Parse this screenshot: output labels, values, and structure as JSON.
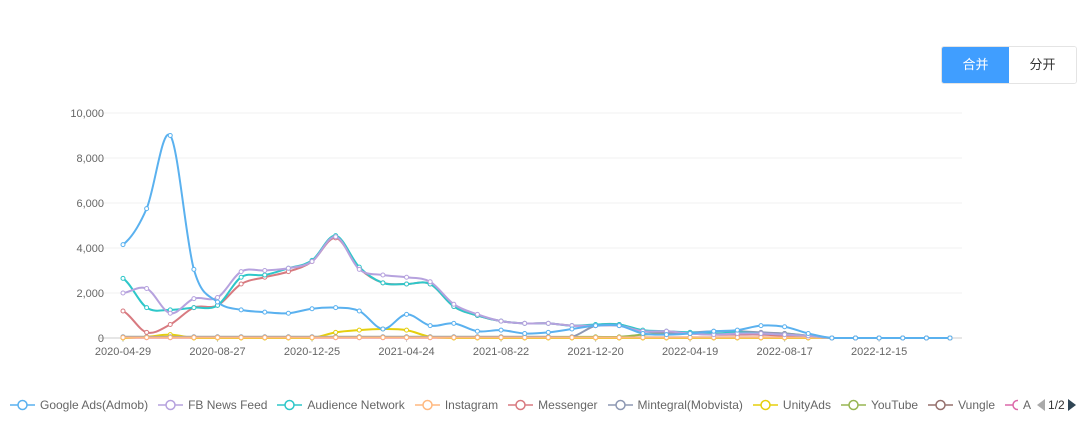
{
  "toggle": {
    "merge": "合并",
    "split": "分开"
  },
  "chart_data": {
    "type": "line",
    "ylim": [
      0,
      10000
    ],
    "yticks": [
      "0",
      "2,000",
      "4,000",
      "6,000",
      "8,000",
      "10,000"
    ],
    "ytick_values": [
      0,
      2000,
      4000,
      6000,
      8000,
      10000
    ],
    "xtick_labels": [
      "2020-04-29",
      "2020-08-27",
      "2020-12-25",
      "2021-04-24",
      "2021-08-22",
      "2021-12-20",
      "2022-04-19",
      "2022-08-17",
      "2022-12-15"
    ],
    "xtick_every": 4,
    "num_points": 36,
    "grid": true,
    "legend_position": "bottom",
    "legend_page": "1/2",
    "series": [
      {
        "name": "Google Ads(Admob)",
        "color": "#5ab1ef",
        "values": [
          4150,
          5750,
          9000,
          3050,
          1600,
          1250,
          1150,
          1100,
          1300,
          1350,
          1200,
          400,
          1050,
          550,
          650,
          300,
          350,
          200,
          250,
          400,
          550,
          550,
          200,
          150,
          200,
          300,
          350,
          550,
          500,
          200,
          0,
          0,
          0,
          0,
          0,
          0
        ]
      },
      {
        "name": "FB News Feed",
        "color": "#b6a2de",
        "values": [
          2000,
          2200,
          1100,
          1750,
          1800,
          2950,
          3000,
          3100,
          3400,
          4500,
          3050,
          2800,
          2700,
          2500,
          1500,
          1050,
          750,
          650,
          650,
          550,
          550,
          550,
          300,
          300,
          200,
          150,
          200,
          200,
          150,
          100,
          0,
          0,
          0,
          0,
          0,
          0
        ]
      },
      {
        "name": "Audience Network",
        "color": "#2ec7c9",
        "values": [
          2650,
          1350,
          1250,
          1350,
          1450,
          2700,
          2800,
          3100,
          3450,
          4550,
          3150,
          2450,
          2400,
          2400,
          1400,
          1000,
          750,
          650,
          650,
          550,
          600,
          600,
          350,
          300,
          250,
          200,
          250,
          200,
          150,
          100,
          0,
          0,
          0,
          0,
          0,
          0
        ]
      },
      {
        "name": "Instagram",
        "color": "#ffb980",
        "values": [
          20,
          20,
          20,
          20,
          20,
          20,
          20,
          20,
          20,
          20,
          20,
          20,
          20,
          20,
          20,
          20,
          20,
          20,
          20,
          20,
          20,
          20,
          20,
          20,
          20,
          20,
          20,
          20,
          20,
          20,
          0,
          0,
          0,
          0,
          0,
          0
        ]
      },
      {
        "name": "Messenger",
        "color": "#d87a80",
        "values": [
          1200,
          250,
          600,
          1350,
          1450,
          2400,
          2700,
          2950,
          3400,
          4450,
          3100,
          2450,
          2400,
          2400,
          1400,
          1000,
          750,
          650,
          650,
          550,
          550,
          550,
          300,
          300,
          200,
          150,
          150,
          150,
          100,
          50,
          0,
          0,
          0,
          0,
          0,
          0
        ]
      },
      {
        "name": "Mintegral(Mobvista)",
        "color": "#8d98b3",
        "values": [
          50,
          50,
          50,
          50,
          50,
          50,
          50,
          50,
          50,
          50,
          50,
          50,
          50,
          50,
          50,
          50,
          50,
          50,
          50,
          50,
          550,
          600,
          300,
          250,
          250,
          300,
          300,
          250,
          200,
          100,
          0,
          0,
          0,
          0,
          0,
          0
        ]
      },
      {
        "name": "UnityAds",
        "color": "#e5cf0d",
        "values": [
          0,
          50,
          150,
          0,
          0,
          0,
          0,
          0,
          0,
          250,
          350,
          400,
          350,
          50,
          0,
          0,
          0,
          0,
          0,
          0,
          0,
          0,
          0,
          0,
          0,
          0,
          0,
          0,
          0,
          0,
          0,
          0,
          0,
          0,
          0,
          0
        ]
      },
      {
        "name": "YouTube",
        "color": "#97b552",
        "values": [
          50,
          50,
          50,
          50,
          50,
          50,
          50,
          50,
          50,
          50,
          50,
          50,
          50,
          50,
          50,
          50,
          50,
          50,
          50,
          50,
          50,
          50,
          150,
          200,
          200,
          200,
          200,
          200,
          200,
          100,
          0,
          0,
          0,
          0,
          0,
          0
        ]
      },
      {
        "name": "Vungle",
        "color": "#95706d",
        "values": [
          30,
          30,
          30,
          30,
          30,
          30,
          30,
          30,
          30,
          30,
          30,
          30,
          30,
          30,
          30,
          30,
          30,
          30,
          30,
          30,
          30,
          30,
          30,
          30,
          30,
          30,
          30,
          30,
          30,
          30,
          0,
          0,
          0,
          0,
          0,
          0
        ]
      },
      {
        "name": "A",
        "color": "#dc69aa",
        "values": [
          10,
          10,
          10,
          10,
          10,
          10,
          10,
          10,
          10,
          10,
          10,
          10,
          10,
          10,
          10,
          10,
          10,
          10,
          10,
          10,
          10,
          10,
          10,
          10,
          10,
          10,
          10,
          10,
          10,
          10,
          0,
          0,
          0,
          0,
          0,
          0
        ]
      }
    ]
  }
}
